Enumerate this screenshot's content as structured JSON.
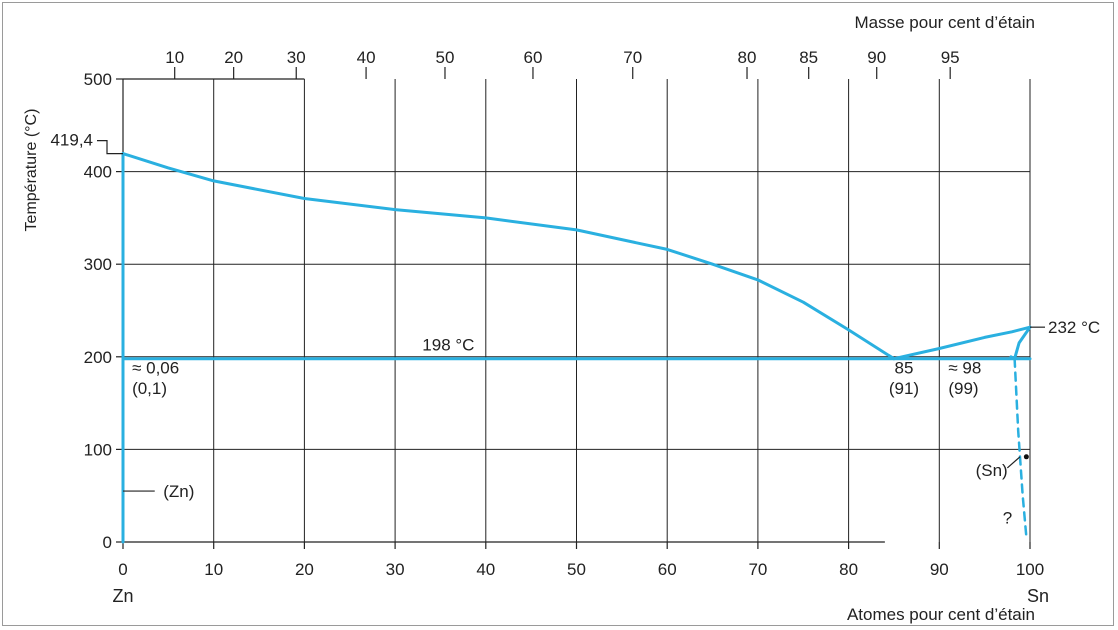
{
  "chart_data": {
    "type": "line",
    "title": "",
    "xlabel": "Atomes pour cent d’étain",
    "x2label": "Masse pour cent d’étain",
    "ylabel": "Température (°C)",
    "xlim": [
      0,
      100
    ],
    "ylim": [
      0,
      500
    ],
    "grid": true,
    "x_ticks": [
      0,
      10,
      20,
      30,
      40,
      50,
      60,
      70,
      80,
      90,
      100
    ],
    "y_ticks": [
      0,
      100,
      200,
      300,
      400,
      500
    ],
    "x_left_end_label": "Zn",
    "x_right_end_label": "Sn",
    "mass_ticks": [
      {
        "label": "10",
        "at": 5.7
      },
      {
        "label": "20",
        "at": 12.2
      },
      {
        "label": "30",
        "at": 19.1
      },
      {
        "label": "40",
        "at": 26.8
      },
      {
        "label": "50",
        "at": 35.5
      },
      {
        "label": "60",
        "at": 45.2
      },
      {
        "label": "70",
        "at": 56.2
      },
      {
        "label": "80",
        "at": 68.8
      },
      {
        "label": "85",
        "at": 75.6
      },
      {
        "label": "90",
        "at": 83.1
      },
      {
        "label": "95",
        "at": 91.2
      }
    ],
    "series": [
      {
        "name": "liquidus-zn",
        "x": [
          0,
          5,
          10,
          20,
          30,
          40,
          50,
          60,
          65,
          70,
          75,
          80,
          85
        ],
        "y": [
          419.4,
          404,
          390,
          371,
          359,
          350,
          337,
          316,
          300,
          283,
          259,
          229,
          198
        ]
      },
      {
        "name": "liquidus-sn",
        "x": [
          85,
          90,
          95,
          98,
          100
        ],
        "y": [
          198,
          209,
          221,
          227,
          232
        ]
      },
      {
        "name": "eutectic",
        "x": [
          0,
          100
        ],
        "y": [
          198,
          198
        ]
      },
      {
        "name": "zn-solvus",
        "x": [
          0,
          0
        ],
        "y": [
          0,
          419.4
        ]
      },
      {
        "name": "sn-solvus",
        "x": [
          100,
          98.8,
          98.3,
          97.9
        ],
        "y": [
          232,
          215,
          198,
          200
        ]
      },
      {
        "name": "sn-solvus-dashed",
        "x": [
          98.3,
          98.7,
          99.2,
          99.6
        ],
        "y": [
          198,
          120,
          50,
          5
        ]
      }
    ],
    "annotations": [
      {
        "text": "419,4",
        "x": 0,
        "y": 419.4
      },
      {
        "text": "198 °C",
        "x": 33,
        "y": 198
      },
      {
        "text": "232 °C",
        "x": 100,
        "y": 232
      },
      {
        "text": "≈ 0,06",
        "x": 1,
        "y": 182
      },
      {
        "text": "(0,1)",
        "x": 1,
        "y": 160
      },
      {
        "text": "85",
        "x": 85,
        "y": 182
      },
      {
        "text": "(91)",
        "x": 85,
        "y": 160
      },
      {
        "text": "≈ 98",
        "x": 91,
        "y": 182
      },
      {
        "text": "(99)",
        "x": 91,
        "y": 160
      },
      {
        "text": "(Zn)",
        "x": 4,
        "y": 55
      },
      {
        "text": "(Sn)",
        "x": 94,
        "y": 78
      },
      {
        "text": "?",
        "x": 97,
        "y": 20
      }
    ]
  },
  "colors": {
    "curve": "#2ab0e0",
    "grid": "#222222",
    "frame": "#9a9a9a"
  }
}
